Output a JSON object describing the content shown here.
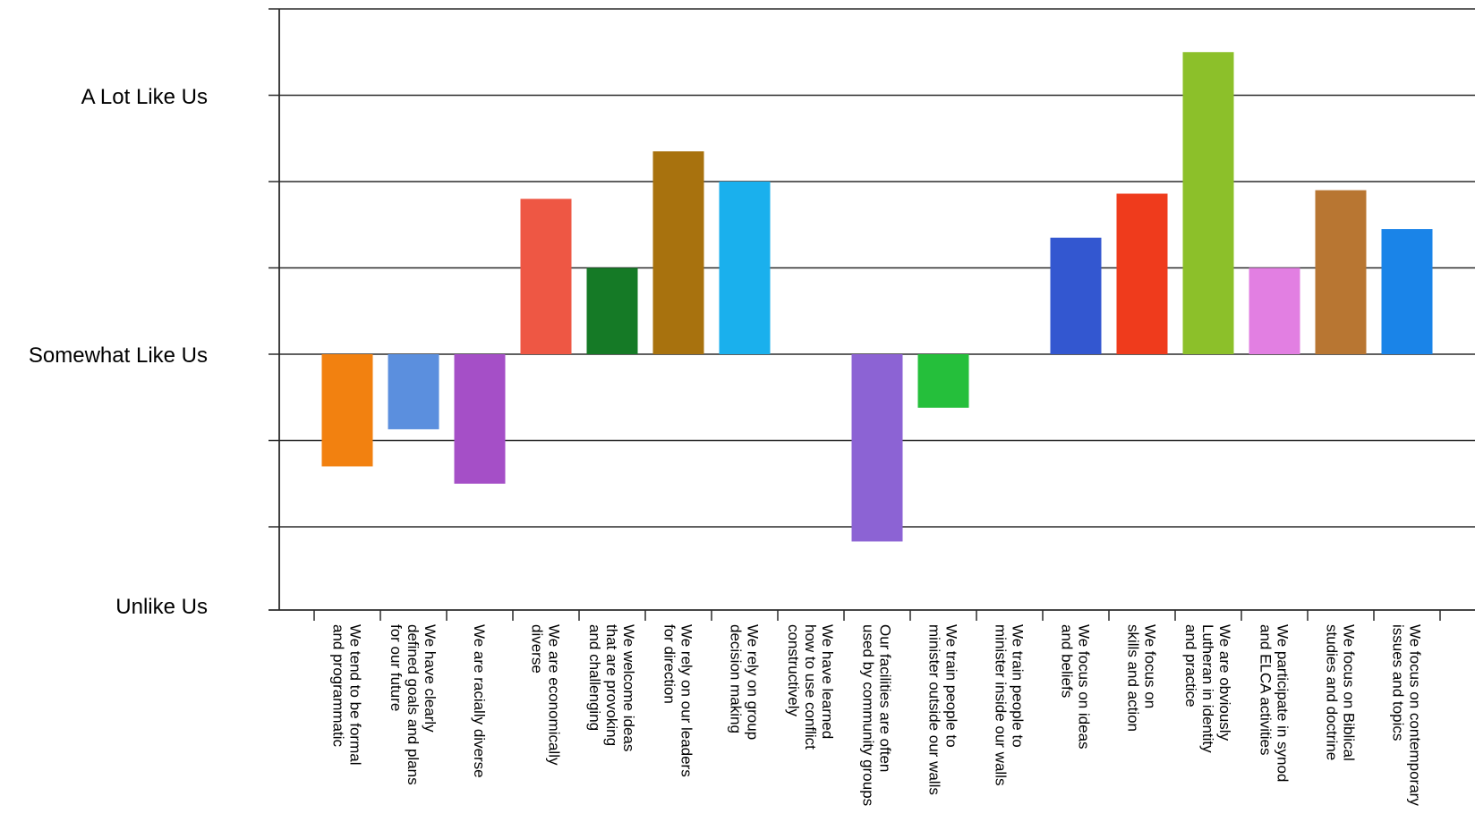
{
  "chart_data": {
    "type": "bar",
    "title": "",
    "xlabel": "",
    "ylabel": "",
    "baseline": 0,
    "ylim": [
      -3,
      3
    ],
    "grid": true,
    "legend": "none",
    "y_tick_labels": [
      {
        "value": 2,
        "label": "A Lot Like Us"
      },
      {
        "value": 0,
        "label": "Somewhat Like Us"
      },
      {
        "value": -3,
        "label": "Unlike Us"
      }
    ],
    "categories": [
      "We tend to be formal and programmatic",
      "We have clearly defined goals and plans for our future",
      "We are racially diverse",
      "We are economically diverse",
      "We welcome ideas that are provoking and challenging",
      "We rely on our leaders for direction",
      "We rely on our group decision making",
      "We have learned how to use conflict constructively",
      "Our facilities are often used by community groups",
      "We train people to minister outside our walls",
      "We train people to minister inside our walls",
      "We focus on ideas and beliefs",
      "We focus on skills and action",
      "We are obviously Lutheran in identity and practice",
      "We participate in synod and ELCA activities",
      "We focus on Biblical studies and doctrine",
      "We focus on contemporary issues and topics"
    ],
    "category_label_lines": [
      [
        "We tend to be formal",
        "and programmatic"
      ],
      [
        "We have clearly",
        "defined goals and plans",
        "for our future"
      ],
      [
        "We are racially diverse"
      ],
      [
        "We are economically",
        "diverse"
      ],
      [
        "We welcome ideas",
        "that are provoking",
        "and challenging"
      ],
      [
        "We rely on our leaders",
        "for direction"
      ],
      [
        "We rely on group",
        "decision making"
      ],
      [
        "We have learned",
        "how to use conflict",
        "constructively"
      ],
      [
        "Our facilities are often",
        "used by community groups"
      ],
      [
        "We train people to",
        "minister outside our walls"
      ],
      [
        "We train people to",
        "minister inside our walls"
      ],
      [
        "We focus on ideas",
        "and beliefs"
      ],
      [
        "We focus on",
        "skills and action"
      ],
      [
        "We are obviously",
        "Lutheran in identity",
        "and practice"
      ],
      [
        "We participate in synod",
        "and ELCA activities"
      ],
      [
        "We focus on Biblical",
        "studies and doctrine"
      ],
      [
        "We focus on contemporary",
        "issues and topics"
      ]
    ],
    "values": [
      -1.3,
      -0.87,
      -1.5,
      1.8,
      1.0,
      2.35,
      2.0,
      0,
      -2.17,
      -0.62,
      0,
      1.35,
      1.86,
      3.5,
      1.0,
      1.9,
      1.45
    ],
    "colors": [
      "#f28110",
      "#5b8fde",
      "#a54fc7",
      "#ee5744",
      "#157a26",
      "#a8720e",
      "#1ab0ed",
      "#ffffff",
      "#8c63d4",
      "#25bf3b",
      "#ffffff",
      "#3357d0",
      "#ef3b1c",
      "#8cc02a",
      "#e27fe2",
      "#b87632",
      "#1a84e8"
    ]
  }
}
